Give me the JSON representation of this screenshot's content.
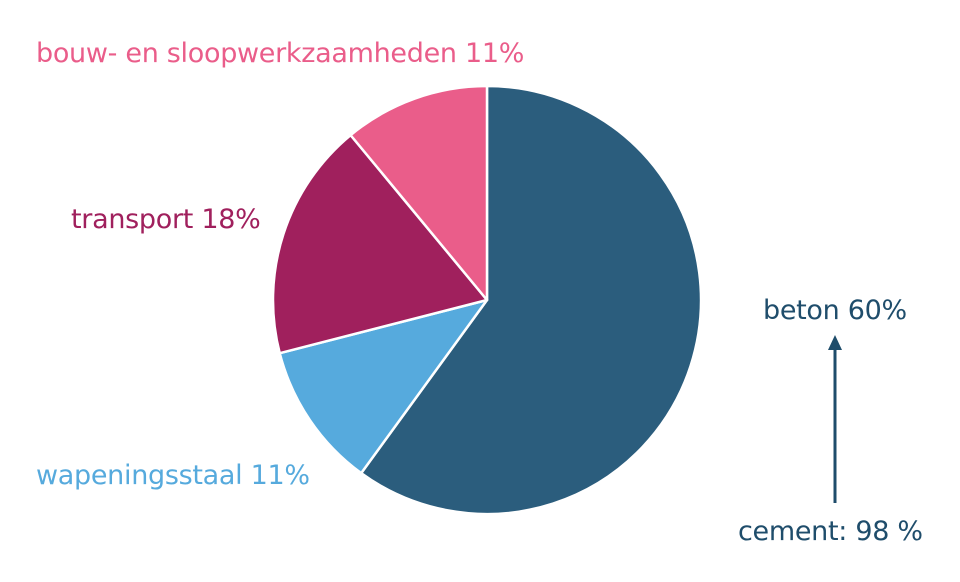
{
  "chart_data": {
    "type": "pie",
    "slices": [
      {
        "label": "beton 60%",
        "value": 60,
        "color": "#2b5d7d"
      },
      {
        "label": "wapeningsstaal 11%",
        "value": 11,
        "color": "#56aadd"
      },
      {
        "label": "transport 18%",
        "value": 18,
        "color": "#a0205d"
      },
      {
        "label": "bouw- en sloopwerkzaamheden 11%",
        "value": 11,
        "color": "#ea5d8a"
      }
    ],
    "annotation": {
      "text": "cement: 98 %",
      "color": "#1f4d6b"
    }
  }
}
